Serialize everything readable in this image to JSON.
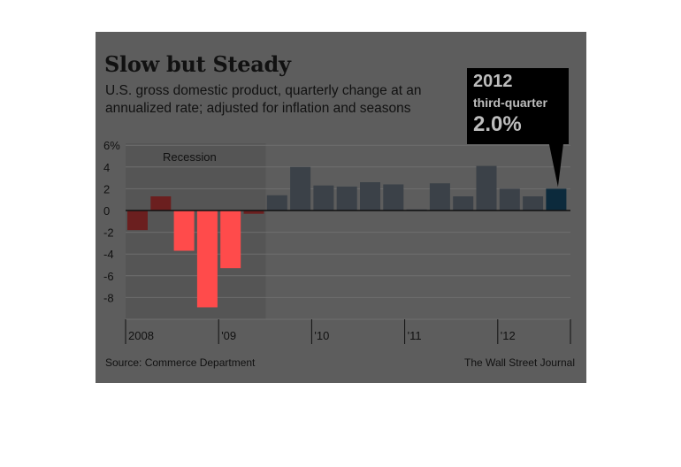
{
  "title": "Slow but Steady",
  "subtitle": "U.S. gross domestic product, quarterly change at an annualized rate; adjusted for inflation and seasons",
  "callout": {
    "year": "2012",
    "label": "third-quarter",
    "value": "2.0%"
  },
  "source": "Source: Commerce Department",
  "credit": "The Wall Street Journal",
  "recession_label": "Recession",
  "colors": {
    "background": "#5d5d5d",
    "recession_shade": "#555555",
    "positive_bar": "#3b4148",
    "recession_bar": "#6b1f1f",
    "highlight_bar": "#ff4b4b",
    "latest_bar": "#0c2a3c"
  },
  "chart_data": {
    "type": "bar",
    "title": "Slow but Steady",
    "ylabel": "",
    "ylim": [
      -10,
      6
    ],
    "yticks": [
      "6%",
      "4",
      "2",
      "0",
      "-2",
      "-4",
      "-6",
      "-8"
    ],
    "ytick_values": [
      6,
      4,
      2,
      0,
      -2,
      -4,
      -6,
      -8
    ],
    "x_year_labels": [
      "2008",
      "'09",
      "'10",
      "'11",
      "'12"
    ],
    "categories": [
      "2008 Q1",
      "2008 Q2",
      "2008 Q3",
      "2008 Q4",
      "2009 Q1",
      "2009 Q2",
      "2009 Q3",
      "2009 Q4",
      "2010 Q1",
      "2010 Q2",
      "2010 Q3",
      "2010 Q4",
      "2011 Q1",
      "2011 Q2",
      "2011 Q3",
      "2011 Q4",
      "2012 Q1",
      "2012 Q2",
      "2012 Q3"
    ],
    "values": [
      -1.8,
      1.3,
      -3.7,
      -8.9,
      -5.3,
      -0.3,
      1.4,
      4.0,
      2.3,
      2.2,
      2.6,
      2.4,
      0.1,
      2.5,
      1.3,
      4.1,
      2.0,
      1.3,
      2.0
    ],
    "recession_range": [
      "2008 Q1",
      "2009 Q2"
    ],
    "grid": true,
    "legend": "none"
  }
}
